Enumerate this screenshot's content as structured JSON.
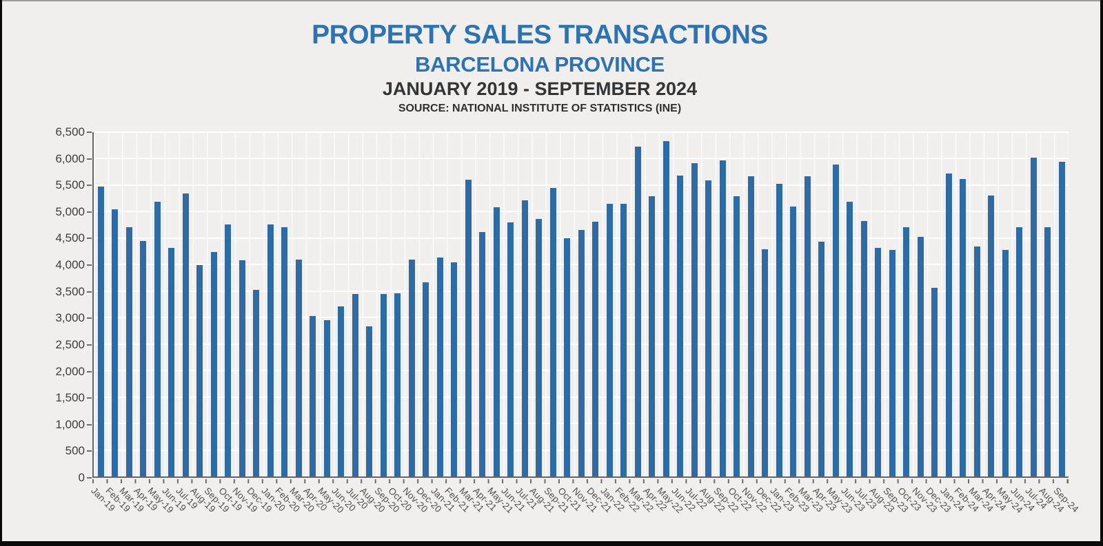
{
  "chart_data": {
    "type": "bar",
    "title": "PROPERTY SALES TRANSACTIONS",
    "subtitle": "BARCELONA PROVINCE",
    "period_label": "JANUARY 2019 - SEPTEMBER 2024",
    "source": "SOURCE: NATIONAL INSTITUTE OF STATISTICS (INE)",
    "xlabel": "",
    "ylabel": "",
    "ylim": [
      0,
      6500
    ],
    "ytick_interval": 500,
    "yticks": [
      "0",
      "500",
      "1,000",
      "1,500",
      "2,000",
      "2,500",
      "3,000",
      "3,500",
      "4,000",
      "4,500",
      "5,000",
      "5,500",
      "6,000",
      "6,500"
    ],
    "grid": "horizontal-white-lines",
    "legend": "none",
    "bar_color": "#2e6ba4",
    "title_color": "#2e73b1",
    "background_color": "#f0efee",
    "categories": [
      "Jan-19",
      "Feb-19",
      "Mar-19",
      "Apr-19",
      "May-19",
      "Jun-19",
      "Jul-19",
      "Aug-19",
      "Sep-19",
      "Oct-19",
      "Nov-19",
      "Dec-19",
      "Jan-20",
      "Feb-20",
      "Mar-20",
      "Apr-20",
      "May-20",
      "Jun-20",
      "Jul-20",
      "Aug-20",
      "Sep-20",
      "Oct-20",
      "Nov-20",
      "Dec-20",
      "Jan-21",
      "Feb-21",
      "Mar-21",
      "Apr-21",
      "May-21",
      "Jun-21",
      "Jul-21",
      "Aug-21",
      "Sep-21",
      "Oct-21",
      "Nov-21",
      "Dec-21",
      "Jan-22",
      "Feb-22",
      "Mar-22",
      "Apr-22",
      "May-22",
      "Jun-22",
      "Jul-22",
      "Aug-22",
      "Sep-22",
      "Oct-22",
      "Nov-22",
      "Dec-22",
      "Jan-23",
      "Feb-23",
      "Mar-23",
      "Apr-23",
      "May-23",
      "Jun-23",
      "Jul-23",
      "Aug-23",
      "Sep-23",
      "Oct-23",
      "Nov-23",
      "Dec-23",
      "Jan-24",
      "Feb-24",
      "Mar-24",
      "Apr-24",
      "May-24",
      "Jun-24",
      "Jul-24",
      "Aug-24",
      "Sep-24"
    ],
    "values": [
      5470,
      5050,
      4710,
      4440,
      5190,
      4310,
      5340,
      3990,
      4240,
      4760,
      4080,
      3520,
      4760,
      4700,
      4090,
      3030,
      2950,
      3210,
      3440,
      2830,
      3440,
      3460,
      4090,
      3670,
      4130,
      4040,
      5600,
      4620,
      5080,
      4800,
      5210,
      4860,
      5450,
      4500,
      4660,
      4810,
      5150,
      5150,
      6230,
      5290,
      6330,
      5680,
      5910,
      5590,
      5970,
      5290,
      5670,
      4290,
      5530,
      5100,
      5670,
      4430,
      5890,
      5190,
      4820,
      4320,
      4280,
      4700,
      4520,
      3560,
      5720,
      5620,
      4340,
      5300,
      4280,
      4710,
      6020,
      4700,
      5940
    ]
  }
}
